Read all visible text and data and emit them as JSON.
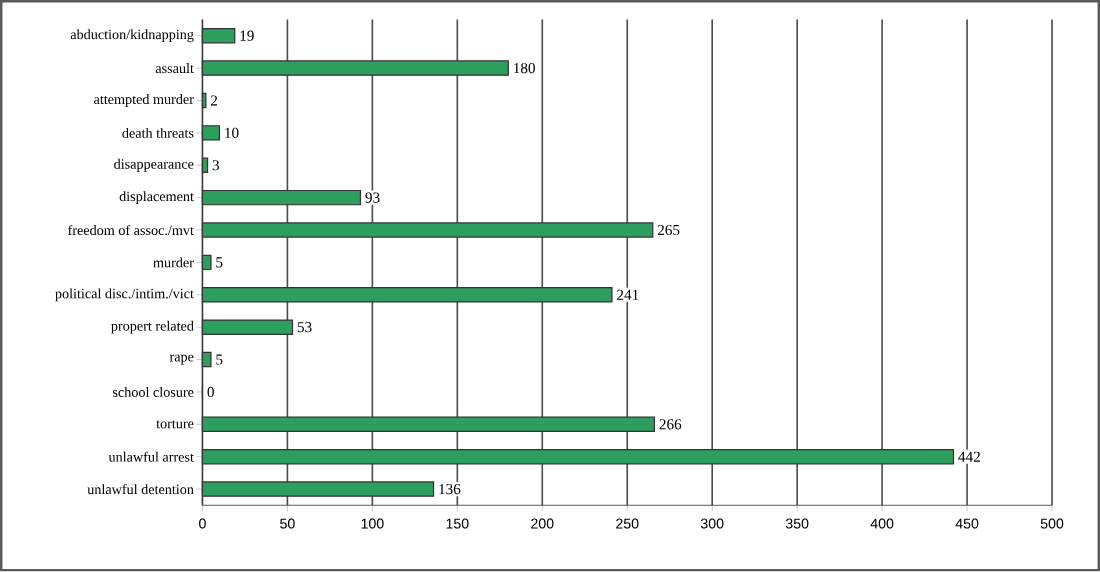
{
  "chart_data": {
    "type": "bar",
    "orientation": "horizontal",
    "categories": [
      "abduction/kidnapping",
      "assault",
      "attempted murder",
      "death threats",
      "disappearance",
      "displacement",
      "freedom of assoc./mvt",
      "murder",
      "political disc./intim./vict",
      "propert related",
      "rape",
      "school closure",
      "torture",
      "unlawful arrest",
      "unlawful detention"
    ],
    "values": [
      19,
      180,
      2,
      10,
      3,
      93,
      265,
      5,
      241,
      53,
      5,
      0,
      266,
      442,
      136
    ],
    "color": "#2e9e5e",
    "xlim": [
      0,
      500
    ],
    "xticks": [
      0,
      50,
      100,
      150,
      200,
      250,
      300,
      350,
      400,
      450,
      500
    ],
    "grid": "x",
    "data_labels": true
  }
}
